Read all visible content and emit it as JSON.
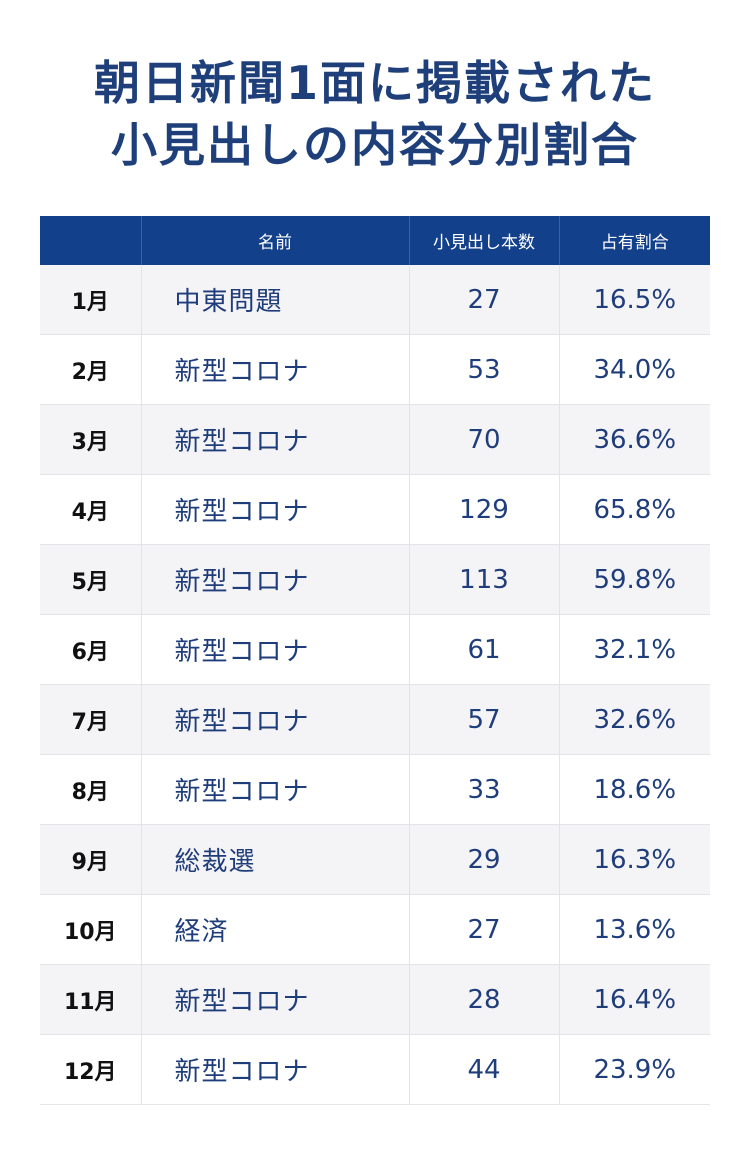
{
  "title_lines": [
    "朝日新聞1面に掲載された",
    "小見出しの内容分別割合"
  ],
  "colors": {
    "header_bg": "#13408a",
    "title": "#1e3f7a",
    "text_blue": "#1f3d7a",
    "stripe": "#f4f3f6"
  },
  "chart_data": {
    "type": "table",
    "title": "朝日新聞1面に掲載された小見出しの内容分別割合",
    "columns": [
      "",
      "名前",
      "小見出し本数",
      "占有割合"
    ],
    "rows": [
      {
        "month": "1月",
        "name": "中東問題",
        "count": "27",
        "share": "16.5%"
      },
      {
        "month": "2月",
        "name": "新型コロナ",
        "count": "53",
        "share": "34.0%"
      },
      {
        "month": "3月",
        "name": "新型コロナ",
        "count": "70",
        "share": "36.6%"
      },
      {
        "month": "4月",
        "name": "新型コロナ",
        "count": "129",
        "share": "65.8%"
      },
      {
        "month": "5月",
        "name": "新型コロナ",
        "count": "113",
        "share": "59.8%"
      },
      {
        "month": "6月",
        "name": "新型コロナ",
        "count": "61",
        "share": "32.1%"
      },
      {
        "month": "7月",
        "name": "新型コロナ",
        "count": "57",
        "share": "32.6%"
      },
      {
        "month": "8月",
        "name": "新型コロナ",
        "count": "33",
        "share": "18.6%"
      },
      {
        "month": "9月",
        "name": "総裁選",
        "count": "29",
        "share": "16.3%"
      },
      {
        "month": "10月",
        "name": "経済",
        "count": "27",
        "share": "13.6%"
      },
      {
        "month": "11月",
        "name": "新型コロナ",
        "count": "28",
        "share": "16.4%"
      },
      {
        "month": "12月",
        "name": "新型コロナ",
        "count": "44",
        "share": "23.9%"
      }
    ]
  }
}
